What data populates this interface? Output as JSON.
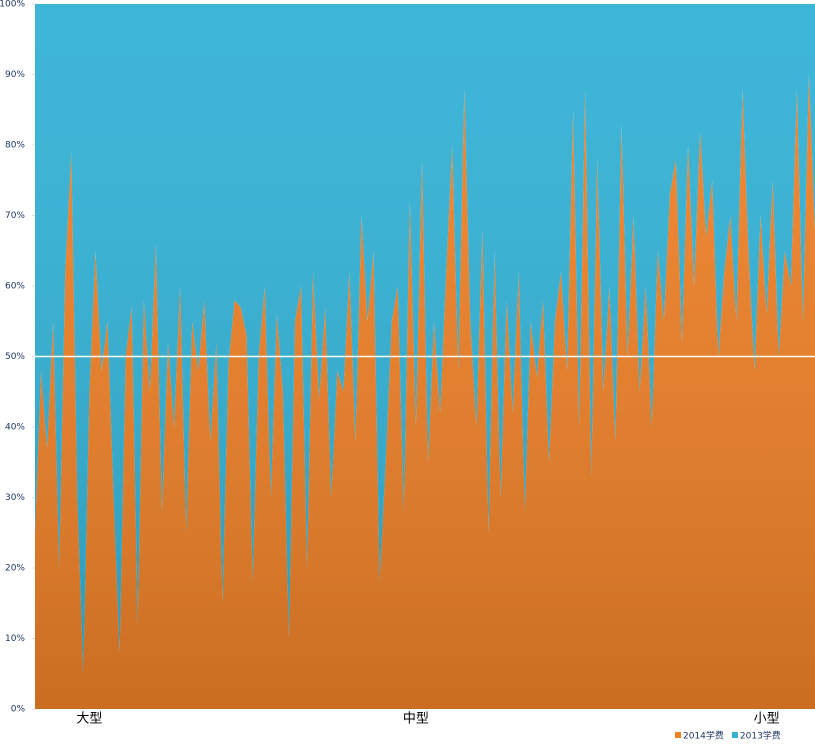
{
  "chart_data": {
    "type": "stacked_area_100",
    "categories": [
      null,
      null,
      null,
      null,
      null,
      null,
      null,
      null,
      null,
      "大型",
      null,
      null,
      null,
      null,
      null,
      null,
      null,
      null,
      null,
      null,
      null,
      null,
      null,
      null,
      null,
      null,
      null,
      null,
      null,
      null,
      null,
      null,
      null,
      null,
      null,
      null,
      null,
      null,
      null,
      null,
      null,
      null,
      null,
      null,
      null,
      null,
      null,
      null,
      null,
      null,
      null,
      null,
      null,
      null,
      null,
      null,
      null,
      null,
      null,
      null,
      null,
      null,
      null,
      "中型",
      null,
      null,
      null,
      null,
      null,
      null,
      null,
      null,
      null,
      null,
      null,
      null,
      null,
      null,
      null,
      null,
      null,
      null,
      null,
      null,
      null,
      null,
      null,
      null,
      null,
      null,
      null,
      null,
      null,
      null,
      null,
      null,
      null,
      null,
      null,
      null,
      null,
      null,
      null,
      null,
      null,
      null,
      null,
      null,
      null,
      null,
      null,
      null,
      null,
      null,
      null,
      null,
      null,
      null,
      null,
      null,
      null,
      "小型",
      null,
      null,
      null,
      null,
      null,
      null,
      null,
      null
    ],
    "series": [
      {
        "name": "2014学费",
        "color": "#ee8128",
        "values": [
          25,
          48,
          37,
          55,
          20,
          62,
          79,
          30,
          5,
          45,
          65,
          48,
          55,
          30,
          8,
          50,
          57,
          12,
          58,
          45,
          66,
          28,
          52,
          40,
          60,
          25,
          55,
          48,
          58,
          38,
          52,
          15,
          49,
          58,
          57,
          53,
          18,
          50,
          60,
          30,
          56,
          45,
          10,
          55,
          60,
          20,
          62,
          44,
          57,
          30,
          48,
          45,
          62,
          38,
          70,
          55,
          65,
          18,
          35,
          55,
          60,
          28,
          72,
          40,
          78,
          35,
          55,
          42,
          62,
          80,
          48,
          88,
          55,
          40,
          68,
          25,
          65,
          30,
          58,
          42,
          62,
          28,
          55,
          47,
          58,
          35,
          55,
          62,
          48,
          85,
          40,
          88,
          33,
          78,
          45,
          60,
          38,
          83,
          50,
          70,
          45,
          60,
          40,
          65,
          55,
          73,
          78,
          52,
          80,
          60,
          82,
          67,
          75,
          50,
          62,
          70,
          55,
          88,
          65,
          48,
          70,
          56,
          75,
          50,
          65,
          60,
          88,
          55,
          90,
          68
        ]
      },
      {
        "name": "2013学费",
        "color": "#33b2d6",
        "values": [
          75,
          52,
          63,
          45,
          80,
          38,
          21,
          70,
          95,
          55,
          35,
          52,
          45,
          70,
          92,
          50,
          43,
          88,
          42,
          55,
          34,
          72,
          48,
          60,
          40,
          75,
          45,
          52,
          42,
          62,
          48,
          85,
          51,
          42,
          43,
          47,
          82,
          50,
          40,
          70,
          44,
          55,
          90,
          45,
          40,
          80,
          38,
          56,
          43,
          70,
          52,
          55,
          38,
          62,
          30,
          45,
          35,
          82,
          65,
          45,
          40,
          72,
          28,
          60,
          22,
          65,
          45,
          58,
          38,
          20,
          52,
          12,
          45,
          60,
          32,
          75,
          35,
          70,
          42,
          58,
          38,
          72,
          45,
          53,
          42,
          65,
          45,
          38,
          52,
          15,
          60,
          12,
          67,
          22,
          55,
          40,
          62,
          17,
          50,
          30,
          55,
          40,
          60,
          35,
          45,
          27,
          22,
          48,
          20,
          40,
          18,
          33,
          25,
          50,
          38,
          30,
          45,
          12,
          35,
          52,
          30,
          44,
          25,
          50,
          35,
          40,
          12,
          45,
          10,
          32
        ]
      }
    ],
    "ylim": [
      0,
      100
    ],
    "yticks": [
      {
        "value": 0,
        "label": "0%"
      },
      {
        "value": 10,
        "label": "10%"
      },
      {
        "value": 20,
        "label": "20%"
      },
      {
        "value": 30,
        "label": "30%"
      },
      {
        "value": 40,
        "label": "40%"
      },
      {
        "value": 50,
        "label": "50%"
      },
      {
        "value": 60,
        "label": "60%"
      },
      {
        "value": 70,
        "label": "70%"
      },
      {
        "value": 80,
        "label": "80%"
      },
      {
        "value": 90,
        "label": "90%"
      },
      {
        "value": 100,
        "label": "100%"
      }
    ],
    "reference_line": {
      "value": 50,
      "color": "#ffffff"
    },
    "legend": "bottom-right"
  }
}
